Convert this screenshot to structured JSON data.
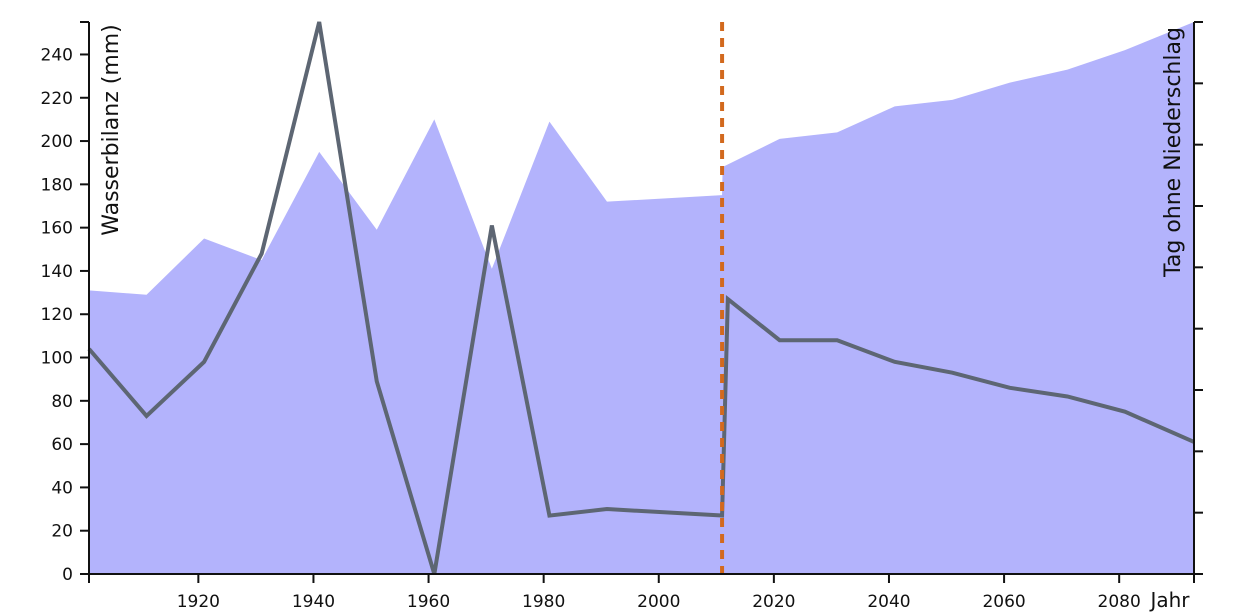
{
  "chart_data": {
    "type": "area+line",
    "xlabel": "Jahr",
    "ylabel_left": "Wasserbilanz (mm)",
    "ylabel_right": "Tag ohne Niederschlag",
    "xlim": [
      1901,
      2093
    ],
    "ylim_left": [
      0,
      255
    ],
    "ylim_right": [
      0,
      18
    ],
    "x_ticks": [
      1920,
      1940,
      1960,
      1980,
      2000,
      2020,
      2040,
      2060,
      2080
    ],
    "x_tick_labels": [
      "1920",
      "1940",
      "1960",
      "1980",
      "2000",
      "2020",
      "2040",
      "2060",
      "2080"
    ],
    "y_left_ticks": [
      0,
      20,
      40,
      60,
      80,
      100,
      120,
      140,
      160,
      180,
      200,
      220,
      240
    ],
    "y_left_tick_labels": [
      "0",
      "20",
      "40",
      "60",
      "80",
      "100",
      "120",
      "140",
      "160",
      "180",
      "200",
      "220",
      "240"
    ],
    "y_right_ticks": [
      0,
      2,
      4,
      6,
      8,
      10,
      12,
      14,
      16,
      18
    ],
    "divider_x": 2011,
    "series": [
      {
        "kind": "area",
        "axis": "left",
        "color": "#b3b3fc",
        "x": [
          1901,
          1911,
          1921,
          1931,
          1941,
          1951,
          1961,
          1971,
          1981,
          1991,
          2011,
          2011.1,
          2021,
          2031,
          2041,
          2051,
          2061,
          2071,
          2081,
          2093
        ],
        "values": [
          131,
          129,
          155,
          145,
          195,
          159,
          210,
          141,
          209,
          172,
          175,
          188,
          201,
          204,
          216,
          219,
          227,
          233,
          242,
          256
        ]
      },
      {
        "kind": "line",
        "axis": "left",
        "color": "#5d6673",
        "x": [
          1901,
          1911,
          1921,
          1931,
          1941,
          1951,
          1961,
          1971,
          1981,
          1991,
          2011,
          2012,
          2021,
          2031,
          2041,
          2051,
          2061,
          2071,
          2081,
          2093
        ],
        "values": [
          104,
          73,
          98,
          148,
          256,
          89,
          0,
          161,
          27,
          30,
          27,
          127,
          108,
          108,
          98,
          93,
          86,
          82,
          75,
          61
        ]
      }
    ],
    "colors": {
      "divider": "#d2691e",
      "axis": "#111111"
    }
  }
}
